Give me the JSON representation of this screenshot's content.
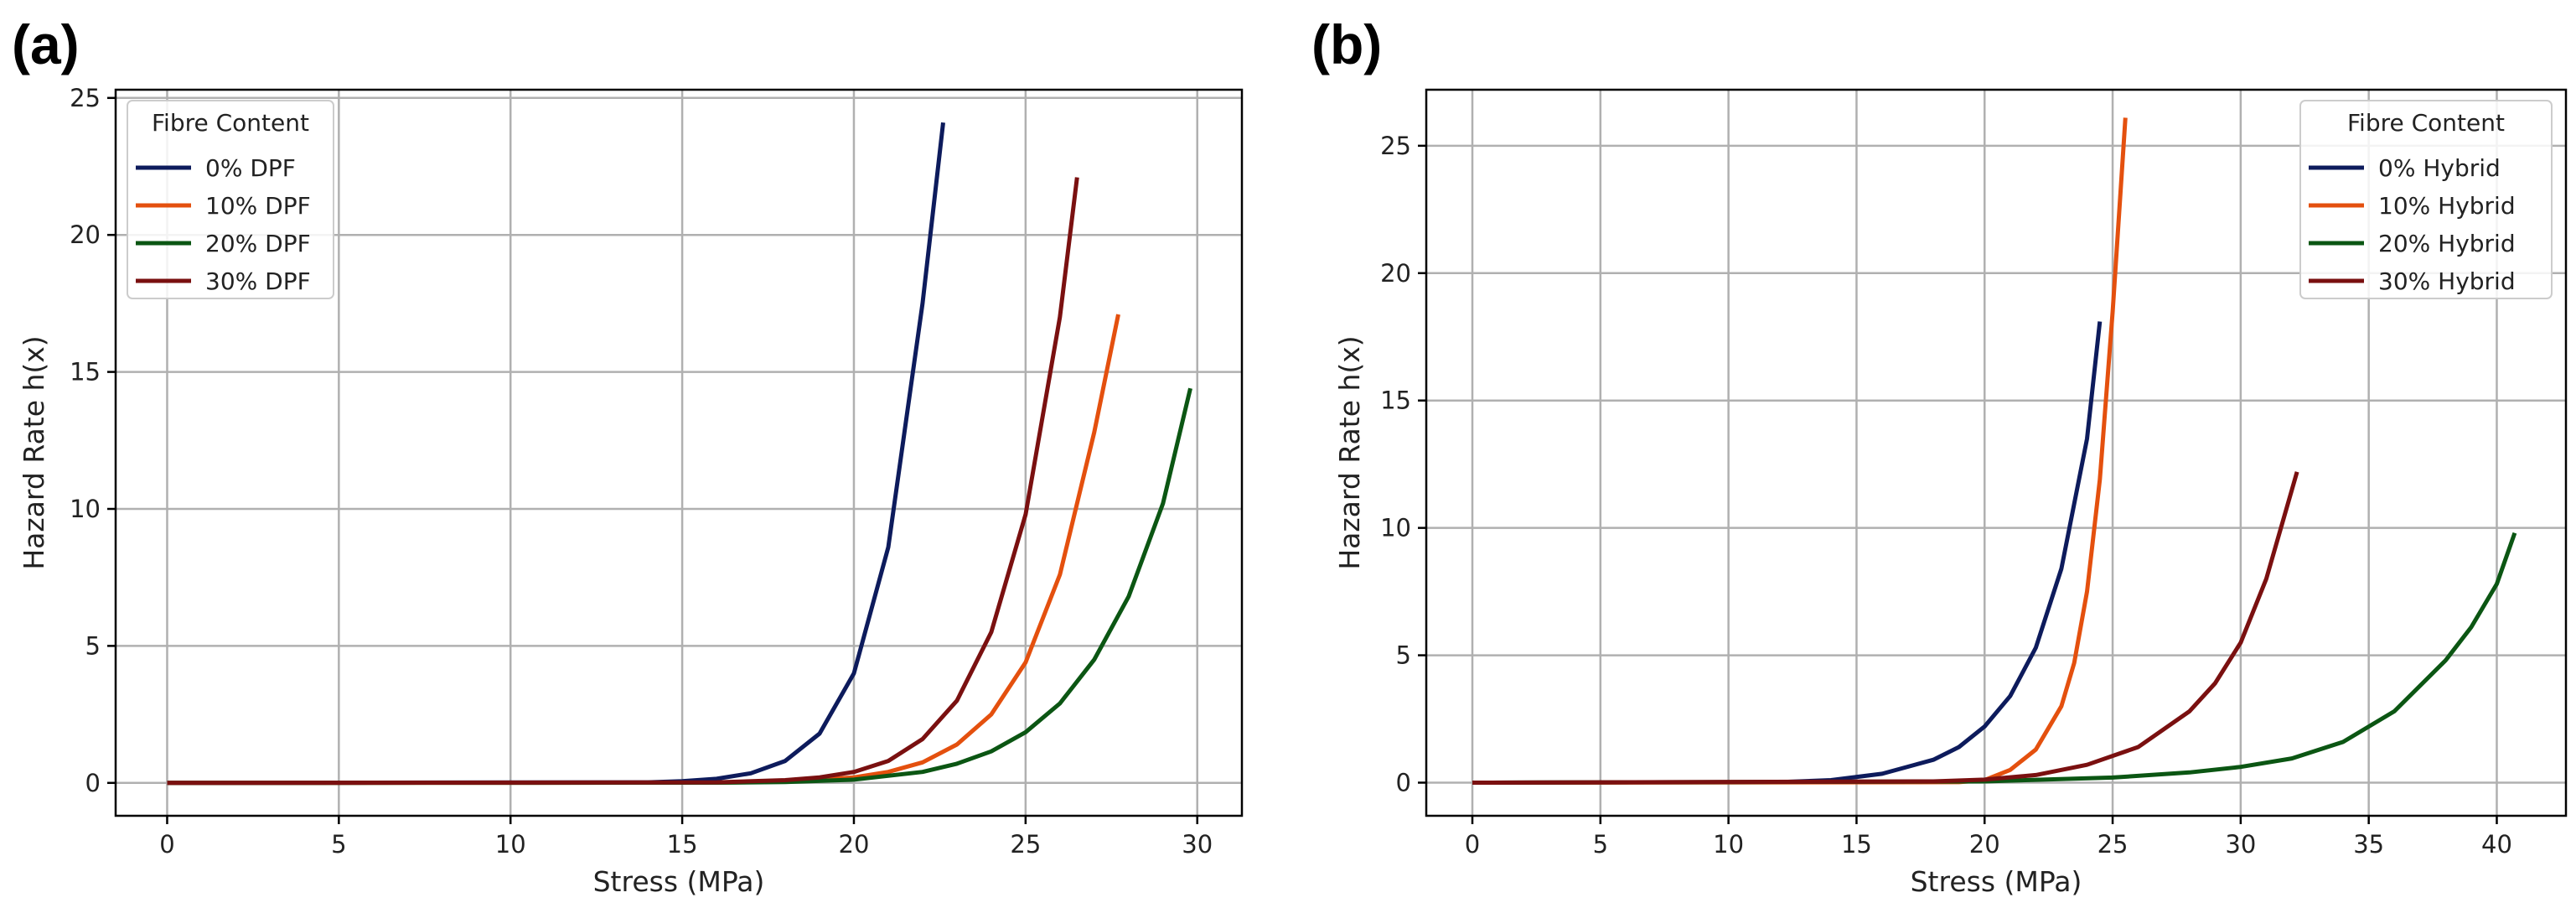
{
  "chart_data": [
    {
      "panel_label": "(a)",
      "type": "line",
      "xlabel": "Stress (MPa)",
      "ylabel": "Hazard Rate h(x)",
      "xlim": [
        -1.5,
        31.3
      ],
      "ylim": [
        -1.2,
        25.3
      ],
      "xticks": [
        0,
        5,
        10,
        15,
        20,
        25,
        30
      ],
      "yticks": [
        0,
        5,
        10,
        15,
        20,
        25
      ],
      "grid": true,
      "legend": {
        "title": "Fibre Content",
        "position": "top-left"
      },
      "series": [
        {
          "name": "0% DPF",
          "color": "#0d1b5c",
          "x": [
            0,
            14,
            15,
            16,
            17,
            18,
            19,
            20,
            21,
            22,
            22.6
          ],
          "y": [
            0,
            0.02,
            0.06,
            0.15,
            0.35,
            0.8,
            1.8,
            4.0,
            8.6,
            17.5,
            24.1
          ]
        },
        {
          "name": "10% DPF",
          "color": "#e4500e",
          "x": [
            0,
            16,
            18,
            20,
            21,
            22,
            23,
            24,
            25,
            26,
            27,
            27.7
          ],
          "y": [
            0,
            0.01,
            0.05,
            0.2,
            0.4,
            0.75,
            1.4,
            2.5,
            4.4,
            7.6,
            12.8,
            17.1
          ]
        },
        {
          "name": "20% DPF",
          "color": "#0b5613",
          "x": [
            0,
            16,
            18,
            20,
            22,
            23,
            24,
            25,
            26,
            27,
            28,
            29,
            29.8
          ],
          "y": [
            0,
            0.01,
            0.03,
            0.12,
            0.4,
            0.7,
            1.15,
            1.85,
            2.9,
            4.5,
            6.8,
            10.2,
            14.4
          ]
        },
        {
          "name": "30% DPF",
          "color": "#7a1010",
          "x": [
            0,
            16,
            18,
            19,
            20,
            21,
            22,
            23,
            24,
            25,
            26,
            26.5
          ],
          "y": [
            0,
            0.02,
            0.1,
            0.2,
            0.4,
            0.8,
            1.6,
            3.0,
            5.5,
            9.8,
            17.0,
            22.1
          ]
        }
      ]
    },
    {
      "panel_label": "(b)",
      "type": "line",
      "xlabel": "Stress (MPa)",
      "ylabel": "Hazard Rate h(x)",
      "xlim": [
        -1.8,
        42.7
      ],
      "ylim": [
        -1.3,
        27.2
      ],
      "xticks": [
        0,
        5,
        10,
        15,
        20,
        25,
        30,
        35,
        40
      ],
      "yticks": [
        0,
        5,
        10,
        15,
        20,
        25
      ],
      "grid": true,
      "legend": {
        "title": "Fibre Content",
        "position": "top-right"
      },
      "series": [
        {
          "name": "0% Hybrid",
          "color": "#0d1b5c",
          "x": [
            0,
            12,
            14,
            16,
            18,
            19,
            20,
            21,
            22,
            23,
            24,
            24.5
          ],
          "y": [
            0,
            0.02,
            0.1,
            0.35,
            0.9,
            1.4,
            2.2,
            3.4,
            5.3,
            8.4,
            13.5,
            18.1
          ]
        },
        {
          "name": "10% Hybrid",
          "color": "#e4500e",
          "x": [
            0,
            19,
            20,
            21,
            22,
            23,
            23.5,
            24,
            24.5,
            25,
            25.5
          ],
          "y": [
            0,
            0.02,
            0.1,
            0.5,
            1.3,
            3.0,
            4.7,
            7.5,
            11.9,
            18.5,
            26.1
          ]
        },
        {
          "name": "20% Hybrid",
          "color": "#0b5613",
          "x": [
            0,
            20,
            25,
            28,
            30,
            32,
            34,
            36,
            38,
            39,
            40,
            40.7
          ],
          "y": [
            0,
            0.05,
            0.2,
            0.4,
            0.62,
            0.95,
            1.6,
            2.8,
            4.8,
            6.1,
            7.8,
            9.8
          ]
        },
        {
          "name": "30% Hybrid",
          "color": "#7a1010",
          "x": [
            0,
            18,
            20,
            22,
            24,
            26,
            28,
            29,
            30,
            31,
            32,
            32.2
          ],
          "y": [
            0,
            0.05,
            0.12,
            0.3,
            0.7,
            1.4,
            2.8,
            3.9,
            5.5,
            8.0,
            11.5,
            12.2
          ]
        }
      ]
    }
  ]
}
